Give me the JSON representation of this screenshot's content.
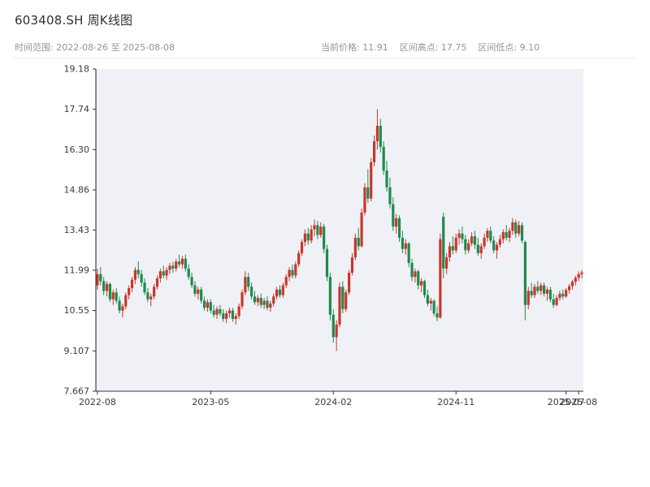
{
  "header": {
    "title": "603408.SH 周K线图",
    "subtitle_left": "时间范围: 2022-08-26 至 2025-08-08",
    "stats": [
      "当前价格: 11.91",
      "区间高点: 17.75",
      "区间低点: 9.10"
    ]
  },
  "chart_data": {
    "type": "candlestick",
    "title": "603408.SH 周K线图",
    "ylim": [
      7.667,
      19.18
    ],
    "grid": false,
    "colors": {
      "up": "#c9362b",
      "down": "#1e8a4e",
      "plot_bg": "#f0f1f6",
      "axis": "#30303a",
      "tick_text": "#3a3a44"
    },
    "y_ticks": [
      {
        "value": 19.18,
        "label": "19.18"
      },
      {
        "value": 17.74,
        "label": "17.74"
      },
      {
        "value": 16.3,
        "label": "16.30"
      },
      {
        "value": 14.86,
        "label": "14.86"
      },
      {
        "value": 13.43,
        "label": "13.43"
      },
      {
        "value": 11.99,
        "label": "11.99"
      },
      {
        "value": 10.55,
        "label": "10.55"
      },
      {
        "value": 9.107,
        "label": "9.107"
      },
      {
        "value": 7.667,
        "label": "7.667"
      }
    ],
    "x_ticks": [
      {
        "index": 0,
        "label": "2022-08"
      },
      {
        "index": 36,
        "label": "2023-05"
      },
      {
        "index": 75,
        "label": "2024-02"
      },
      {
        "index": 114,
        "label": "2024-11"
      },
      {
        "index": 149,
        "label": "2025-07"
      },
      {
        "index": 153,
        "label": "2025-08"
      }
    ],
    "candles": [
      [
        11.45,
        12.05,
        11.3,
        11.85
      ],
      [
        11.85,
        12.1,
        11.45,
        11.6
      ],
      [
        11.6,
        11.75,
        11.1,
        11.25
      ],
      [
        11.25,
        11.6,
        11.05,
        11.5
      ],
      [
        11.5,
        11.55,
        10.85,
        10.95
      ],
      [
        10.95,
        11.3,
        10.75,
        11.2
      ],
      [
        11.2,
        11.35,
        10.8,
        10.9
      ],
      [
        10.9,
        11.05,
        10.45,
        10.55
      ],
      [
        10.55,
        10.8,
        10.3,
        10.7
      ],
      [
        10.7,
        11.2,
        10.6,
        11.1
      ],
      [
        11.1,
        11.45,
        10.95,
        11.35
      ],
      [
        11.35,
        11.75,
        11.2,
        11.65
      ],
      [
        11.65,
        12.1,
        11.5,
        12.0
      ],
      [
        12.0,
        12.3,
        11.7,
        11.85
      ],
      [
        11.85,
        12.0,
        11.4,
        11.55
      ],
      [
        11.55,
        11.7,
        11.1,
        11.2
      ],
      [
        11.2,
        11.35,
        10.85,
        10.95
      ],
      [
        10.95,
        11.15,
        10.7,
        11.05
      ],
      [
        11.05,
        11.5,
        10.95,
        11.4
      ],
      [
        11.4,
        11.8,
        11.3,
        11.7
      ],
      [
        11.7,
        12.05,
        11.55,
        11.95
      ],
      [
        11.95,
        12.15,
        11.7,
        11.8
      ],
      [
        11.8,
        12.1,
        11.65,
        12.0
      ],
      [
        12.0,
        12.25,
        11.85,
        12.15
      ],
      [
        12.15,
        12.3,
        11.9,
        12.05
      ],
      [
        12.05,
        12.4,
        11.95,
        12.3
      ],
      [
        12.3,
        12.55,
        12.1,
        12.2
      ],
      [
        12.2,
        12.5,
        12.05,
        12.4
      ],
      [
        12.4,
        12.55,
        11.95,
        12.05
      ],
      [
        12.05,
        12.2,
        11.65,
        11.75
      ],
      [
        11.75,
        11.9,
        11.35,
        11.45
      ],
      [
        11.45,
        11.6,
        11.05,
        11.15
      ],
      [
        11.15,
        11.4,
        10.95,
        11.3
      ],
      [
        11.3,
        11.4,
        10.8,
        10.9
      ],
      [
        10.9,
        11.05,
        10.55,
        10.65
      ],
      [
        10.65,
        10.95,
        10.5,
        10.85
      ],
      [
        10.85,
        10.95,
        10.45,
        10.55
      ],
      [
        10.55,
        10.75,
        10.3,
        10.4
      ],
      [
        10.4,
        10.7,
        10.25,
        10.6
      ],
      [
        10.6,
        10.75,
        10.35,
        10.45
      ],
      [
        10.45,
        10.6,
        10.15,
        10.25
      ],
      [
        10.25,
        10.55,
        10.1,
        10.45
      ],
      [
        10.45,
        10.65,
        10.3,
        10.55
      ],
      [
        10.55,
        10.65,
        10.15,
        10.25
      ],
      [
        10.25,
        10.45,
        10.05,
        10.35
      ],
      [
        10.35,
        10.8,
        10.25,
        10.7
      ],
      [
        10.7,
        11.3,
        10.6,
        11.2
      ],
      [
        11.2,
        11.95,
        11.1,
        11.75
      ],
      [
        11.75,
        11.9,
        11.25,
        11.4
      ],
      [
        11.4,
        11.55,
        10.95,
        11.05
      ],
      [
        11.05,
        11.25,
        10.75,
        10.85
      ],
      [
        10.85,
        11.1,
        10.7,
        11.0
      ],
      [
        11.0,
        11.15,
        10.65,
        10.75
      ],
      [
        10.75,
        11.0,
        10.6,
        10.9
      ],
      [
        10.9,
        11.05,
        10.55,
        10.65
      ],
      [
        10.65,
        10.9,
        10.5,
        10.8
      ],
      [
        10.8,
        11.15,
        10.7,
        11.05
      ],
      [
        11.05,
        11.4,
        10.95,
        11.3
      ],
      [
        11.3,
        11.45,
        11.0,
        11.1
      ],
      [
        11.1,
        11.55,
        11.0,
        11.45
      ],
      [
        11.45,
        11.85,
        11.35,
        11.75
      ],
      [
        11.75,
        12.1,
        11.6,
        12.0
      ],
      [
        12.0,
        12.2,
        11.7,
        11.8
      ],
      [
        11.8,
        12.3,
        11.7,
        12.2
      ],
      [
        12.2,
        12.7,
        12.1,
        12.6
      ],
      [
        12.6,
        13.1,
        12.5,
        13.0
      ],
      [
        13.0,
        13.45,
        12.85,
        13.3
      ],
      [
        13.3,
        13.5,
        12.9,
        13.05
      ],
      [
        13.05,
        13.6,
        12.95,
        13.45
      ],
      [
        13.45,
        13.8,
        13.2,
        13.6
      ],
      [
        13.6,
        13.75,
        13.1,
        13.25
      ],
      [
        13.25,
        13.7,
        13.15,
        13.55
      ],
      [
        13.55,
        13.65,
        12.6,
        12.75
      ],
      [
        12.75,
        12.9,
        11.6,
        11.75
      ],
      [
        11.75,
        11.9,
        10.2,
        10.4
      ],
      [
        10.4,
        10.6,
        9.4,
        9.6
      ],
      [
        9.6,
        10.2,
        9.107,
        10.05
      ],
      [
        10.05,
        11.55,
        9.95,
        11.4
      ],
      [
        11.4,
        11.6,
        10.45,
        10.6
      ],
      [
        10.6,
        11.3,
        10.5,
        11.2
      ],
      [
        11.2,
        12.0,
        11.1,
        11.9
      ],
      [
        11.9,
        12.6,
        11.8,
        12.45
      ],
      [
        12.45,
        13.3,
        12.35,
        13.15
      ],
      [
        13.15,
        13.5,
        12.7,
        12.85
      ],
      [
        12.85,
        14.2,
        12.8,
        14.05
      ],
      [
        14.05,
        15.1,
        13.95,
        14.95
      ],
      [
        14.95,
        15.6,
        14.4,
        14.55
      ],
      [
        14.55,
        16.0,
        14.45,
        15.85
      ],
      [
        15.85,
        16.8,
        15.7,
        16.6
      ],
      [
        16.6,
        17.75,
        16.3,
        17.15
      ],
      [
        17.15,
        17.4,
        16.2,
        16.4
      ],
      [
        16.4,
        16.6,
        15.4,
        15.55
      ],
      [
        15.55,
        15.9,
        14.8,
        14.95
      ],
      [
        14.95,
        15.3,
        14.2,
        14.35
      ],
      [
        14.35,
        14.6,
        13.4,
        13.55
      ],
      [
        13.55,
        14.0,
        13.3,
        13.85
      ],
      [
        13.85,
        13.95,
        13.0,
        13.15
      ],
      [
        13.15,
        13.4,
        12.6,
        12.75
      ],
      [
        12.75,
        13.1,
        12.55,
        12.95
      ],
      [
        12.95,
        13.0,
        12.1,
        12.25
      ],
      [
        12.25,
        12.4,
        11.6,
        11.75
      ],
      [
        11.75,
        12.05,
        11.55,
        11.95
      ],
      [
        11.95,
        12.0,
        11.3,
        11.45
      ],
      [
        11.45,
        11.7,
        11.2,
        11.6
      ],
      [
        11.6,
        11.65,
        11.0,
        11.1
      ],
      [
        11.1,
        11.3,
        10.7,
        10.8
      ],
      [
        10.8,
        11.0,
        10.55,
        10.9
      ],
      [
        10.9,
        10.95,
        10.35,
        10.45
      ],
      [
        10.45,
        10.7,
        10.17,
        10.3
      ],
      [
        10.3,
        13.3,
        10.25,
        13.1
      ],
      [
        13.9,
        14.05,
        11.7,
        12.05
      ],
      [
        12.05,
        12.6,
        11.85,
        12.45
      ],
      [
        12.45,
        13.0,
        12.3,
        12.85
      ],
      [
        12.85,
        13.2,
        12.55,
        12.7
      ],
      [
        12.7,
        13.3,
        12.6,
        13.15
      ],
      [
        13.15,
        13.45,
        12.9,
        13.3
      ],
      [
        13.3,
        13.55,
        12.95,
        13.1
      ],
      [
        13.1,
        13.25,
        12.55,
        12.7
      ],
      [
        12.7,
        13.1,
        12.6,
        12.95
      ],
      [
        12.95,
        13.35,
        12.85,
        13.2
      ],
      [
        13.2,
        13.4,
        12.75,
        12.9
      ],
      [
        12.9,
        13.15,
        12.5,
        12.6
      ],
      [
        12.6,
        12.95,
        12.4,
        12.85
      ],
      [
        12.85,
        13.3,
        12.75,
        13.15
      ],
      [
        13.15,
        13.5,
        13.0,
        13.4
      ],
      [
        13.4,
        13.55,
        12.95,
        13.05
      ],
      [
        13.05,
        13.2,
        12.6,
        12.7
      ],
      [
        12.7,
        13.0,
        12.4,
        12.9
      ],
      [
        12.9,
        13.25,
        12.8,
        13.1
      ],
      [
        13.1,
        13.45,
        12.95,
        13.35
      ],
      [
        13.35,
        13.6,
        13.05,
        13.15
      ],
      [
        13.15,
        13.5,
        13.0,
        13.4
      ],
      [
        13.4,
        13.85,
        13.25,
        13.7
      ],
      [
        13.7,
        13.8,
        13.15,
        13.3
      ],
      [
        13.3,
        13.75,
        13.2,
        13.6
      ],
      [
        13.6,
        13.7,
        12.95,
        13.05
      ],
      [
        13.0,
        13.05,
        10.2,
        10.75
      ],
      [
        10.75,
        11.4,
        10.6,
        11.25
      ],
      [
        11.25,
        11.55,
        11.0,
        11.1
      ],
      [
        11.1,
        11.5,
        11.0,
        11.4
      ],
      [
        11.4,
        11.6,
        11.15,
        11.25
      ],
      [
        11.25,
        11.55,
        11.1,
        11.45
      ],
      [
        11.45,
        11.55,
        11.05,
        11.15
      ],
      [
        11.15,
        11.4,
        10.9,
        11.3
      ],
      [
        11.3,
        11.4,
        10.85,
        10.95
      ],
      [
        10.95,
        11.15,
        10.65,
        10.75
      ],
      [
        10.75,
        11.1,
        10.7,
        11.0
      ],
      [
        11.0,
        11.25,
        10.9,
        11.15
      ],
      [
        11.15,
        11.3,
        10.95,
        11.05
      ],
      [
        11.05,
        11.35,
        11.0,
        11.28
      ],
      [
        11.28,
        11.5,
        11.15,
        11.42
      ],
      [
        11.42,
        11.65,
        11.3,
        11.58
      ],
      [
        11.58,
        11.8,
        11.45,
        11.72
      ],
      [
        11.72,
        11.95,
        11.6,
        11.85
      ],
      [
        11.85,
        12.0,
        11.7,
        11.91
      ]
    ]
  }
}
